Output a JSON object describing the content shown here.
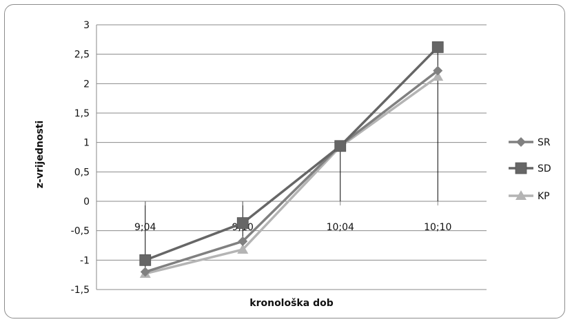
{
  "chart_data": {
    "type": "line",
    "categories": [
      "9;04",
      "9;10",
      "10;04",
      "10;10"
    ],
    "xlabel": "kronološka dob",
    "ylabel": "z-vrijednosti",
    "ylim": [
      -1.5,
      3
    ],
    "yticks": [
      "3",
      "2,5",
      "2",
      "1,5",
      "1",
      "0,5",
      "0",
      "-0,5",
      "-1",
      "-1,5"
    ],
    "grid": true,
    "legend_position": "right",
    "series": [
      {
        "name": "SR",
        "values": [
          -1.2,
          -0.68,
          0.95,
          2.22
        ],
        "color": "#808080",
        "marker": "diamond"
      },
      {
        "name": "SD",
        "values": [
          -1.0,
          -0.37,
          0.94,
          2.62
        ],
        "color": "#666666",
        "marker": "square"
      },
      {
        "name": "KP",
        "values": [
          -1.23,
          -0.82,
          0.93,
          2.12
        ],
        "color": "#b4b4b4",
        "marker": "triangle"
      }
    ]
  }
}
